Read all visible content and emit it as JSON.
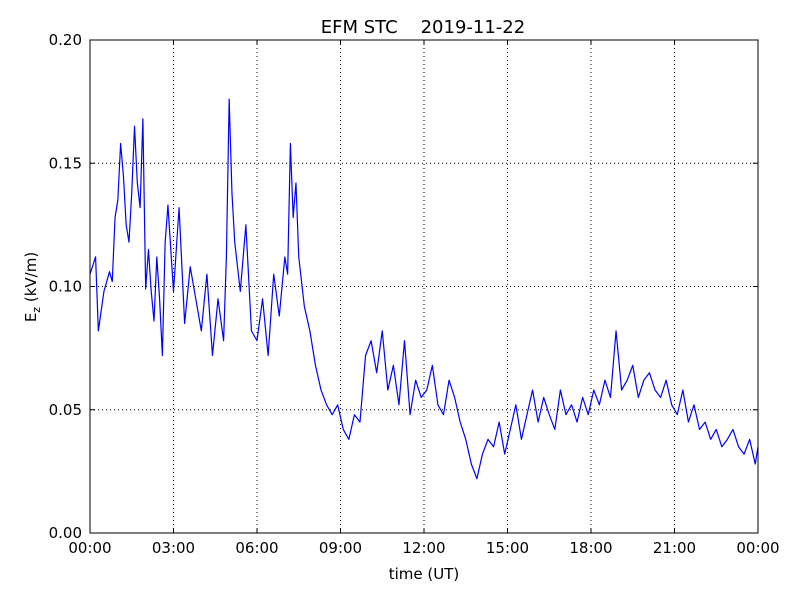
{
  "chart_data": {
    "type": "line",
    "title": "EFM STC    2019-11-22",
    "xlabel": "time (UT)",
    "ylabel_main": "E",
    "ylabel_sub": "z",
    "ylabel_rest": " (kV/m)",
    "xlim": [
      0,
      24
    ],
    "ylim": [
      0.0,
      0.2
    ],
    "x_ticks": [
      0,
      3,
      6,
      9,
      12,
      15,
      18,
      21,
      24
    ],
    "x_tick_labels": [
      "00:00",
      "03:00",
      "06:00",
      "09:00",
      "12:00",
      "15:00",
      "18:00",
      "21:00",
      "00:00"
    ],
    "y_ticks": [
      0.0,
      0.05,
      0.1,
      0.15,
      0.2
    ],
    "y_tick_labels": [
      "0.00",
      "0.05",
      "0.10",
      "0.15",
      "0.20"
    ],
    "grid": true,
    "line_color": "#0000ff",
    "series": [
      {
        "name": "",
        "x": [
          0.0,
          0.2,
          0.3,
          0.5,
          0.7,
          0.8,
          0.9,
          1.0,
          1.1,
          1.2,
          1.3,
          1.4,
          1.5,
          1.6,
          1.7,
          1.8,
          1.9,
          2.0,
          2.1,
          2.2,
          2.3,
          2.4,
          2.5,
          2.6,
          2.7,
          2.8,
          3.0,
          3.2,
          3.4,
          3.6,
          3.8,
          4.0,
          4.2,
          4.4,
          4.6,
          4.8,
          4.9,
          5.0,
          5.1,
          5.2,
          5.4,
          5.6,
          5.8,
          6.0,
          6.2,
          6.4,
          6.6,
          6.8,
          7.0,
          7.1,
          7.2,
          7.3,
          7.4,
          7.5,
          7.7,
          7.9,
          8.1,
          8.3,
          8.5,
          8.7,
          8.9,
          9.1,
          9.3,
          9.5,
          9.7,
          9.9,
          10.1,
          10.3,
          10.5,
          10.7,
          10.9,
          11.1,
          11.3,
          11.5,
          11.7,
          11.9,
          12.1,
          12.3,
          12.5,
          12.7,
          12.9,
          13.1,
          13.3,
          13.5,
          13.7,
          13.9,
          14.1,
          14.3,
          14.5,
          14.7,
          14.9,
          15.1,
          15.3,
          15.5,
          15.7,
          15.9,
          16.1,
          16.3,
          16.5,
          16.7,
          16.9,
          17.1,
          17.3,
          17.5,
          17.7,
          17.9,
          18.1,
          18.3,
          18.5,
          18.7,
          18.9,
          19.1,
          19.3,
          19.5,
          19.7,
          19.9,
          20.1,
          20.3,
          20.5,
          20.7,
          20.9,
          21.1,
          21.3,
          21.5,
          21.7,
          21.9,
          22.1,
          22.3,
          22.5,
          22.7,
          22.9,
          23.1,
          23.3,
          23.5,
          23.7,
          23.9,
          24.0
        ],
        "values": [
          0.105,
          0.112,
          0.082,
          0.098,
          0.106,
          0.102,
          0.128,
          0.135,
          0.158,
          0.145,
          0.125,
          0.118,
          0.138,
          0.165,
          0.142,
          0.132,
          0.168,
          0.099,
          0.115,
          0.098,
          0.086,
          0.112,
          0.095,
          0.072,
          0.118,
          0.133,
          0.098,
          0.132,
          0.085,
          0.108,
          0.095,
          0.082,
          0.105,
          0.072,
          0.095,
          0.078,
          0.112,
          0.176,
          0.138,
          0.118,
          0.098,
          0.125,
          0.082,
          0.078,
          0.095,
          0.072,
          0.105,
          0.088,
          0.112,
          0.105,
          0.158,
          0.128,
          0.142,
          0.112,
          0.092,
          0.082,
          0.068,
          0.058,
          0.052,
          0.048,
          0.052,
          0.042,
          0.038,
          0.048,
          0.045,
          0.072,
          0.078,
          0.065,
          0.082,
          0.058,
          0.068,
          0.052,
          0.078,
          0.048,
          0.062,
          0.055,
          0.058,
          0.068,
          0.052,
          0.048,
          0.062,
          0.055,
          0.045,
          0.038,
          0.028,
          0.022,
          0.032,
          0.038,
          0.035,
          0.045,
          0.032,
          0.042,
          0.052,
          0.038,
          0.048,
          0.058,
          0.045,
          0.055,
          0.048,
          0.042,
          0.058,
          0.048,
          0.052,
          0.045,
          0.055,
          0.048,
          0.058,
          0.052,
          0.062,
          0.055,
          0.082,
          0.058,
          0.062,
          0.068,
          0.055,
          0.062,
          0.065,
          0.058,
          0.055,
          0.062,
          0.052,
          0.048,
          0.058,
          0.045,
          0.052,
          0.042,
          0.045,
          0.038,
          0.042,
          0.035,
          0.038,
          0.042,
          0.035,
          0.032,
          0.038,
          0.028,
          0.035
        ]
      }
    ]
  }
}
